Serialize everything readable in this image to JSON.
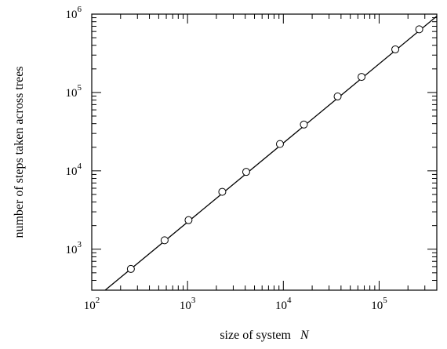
{
  "chart_data": {
    "type": "scatter",
    "title": "",
    "xlabel": "size of system",
    "xlabel_var": "N",
    "ylabel": "number of steps taken across trees",
    "x_scale": "log",
    "y_scale": "log",
    "xlim": [
      100,
      400000
    ],
    "ylim": [
      300,
      1000000
    ],
    "grid": false,
    "x_ticks": [
      {
        "base": "10",
        "exp": "2",
        "value": 100
      },
      {
        "base": "10",
        "exp": "3",
        "value": 1000
      },
      {
        "base": "10",
        "exp": "4",
        "value": 10000
      },
      {
        "base": "10",
        "exp": "5",
        "value": 100000
      }
    ],
    "y_ticks": [
      {
        "base": "10",
        "exp": "3",
        "value": 1000
      },
      {
        "base": "10",
        "exp": "4",
        "value": 10000
      },
      {
        "base": "10",
        "exp": "5",
        "value": 100000
      },
      {
        "base": "10",
        "exp": "6",
        "value": 1000000
      }
    ],
    "series": [
      {
        "marker": "open-circle",
        "x": [
          256,
          576,
          1024,
          2304,
          4096,
          9216,
          16384,
          36864,
          65536,
          147456,
          262144
        ],
        "y": [
          560,
          1300,
          2350,
          5400,
          9700,
          22000,
          39000,
          89000,
          158000,
          355000,
          640000
        ]
      }
    ],
    "fit_line": {
      "x": [
        138,
        400000
      ],
      "y": [
        300,
        940000
      ]
    }
  }
}
